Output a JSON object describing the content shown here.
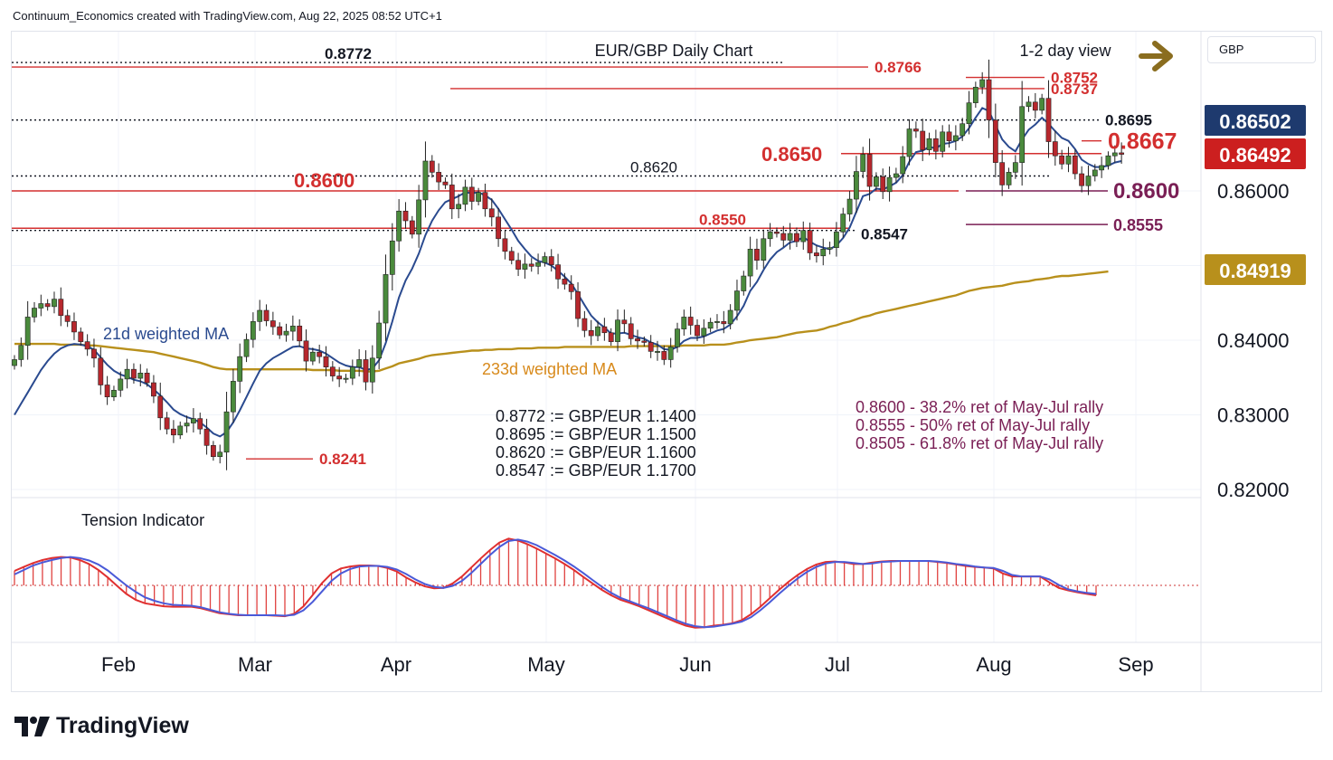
{
  "header": {
    "credit": "Continuum_Economics created with TradingView.com, Aug 22, 2025 08:52 UTC+1"
  },
  "currency_label": "GBP",
  "logo": {
    "text": "TradingView",
    "icon": "tradingview-logo-icon"
  },
  "colors": {
    "candle_up": "#4a8a3c",
    "candle_down": "#b7272d",
    "resistance": "#d32f2f",
    "ma21": "#2a4a8f",
    "ma233": "#b8901c",
    "retrace": "#7a1f55",
    "arrow": "#8a6d1f"
  },
  "chart_data": {
    "type": "candlestick",
    "title": "EUR/GBP Daily Chart",
    "subtitle": "1-2 day view",
    "x_ticks": [
      "Feb",
      "Mar",
      "Apr",
      "May",
      "Jun",
      "Jul",
      "Aug",
      "Sep"
    ],
    "y_ticks": [
      "0.82000",
      "0.83000",
      "0.84000",
      "0.86000"
    ],
    "ylim": [
      0.8185,
      0.8815
    ],
    "price_tags": [
      {
        "text": "0.86502",
        "value": 0.86502,
        "style": "navy"
      },
      {
        "text": "0.86492",
        "value": 0.86492,
        "style": "red"
      },
      {
        "text": "0.84919",
        "value": 0.84919,
        "style": "gold"
      }
    ],
    "levels": [
      {
        "text": "0.8772",
        "value": 0.8772,
        "style": "dotted"
      },
      {
        "text": "0.8766",
        "value": 0.8766,
        "style": "resistance"
      },
      {
        "text": "0.8752",
        "value": 0.8752,
        "style": "resistance"
      },
      {
        "text": "0.8737",
        "value": 0.8737,
        "style": "resistance"
      },
      {
        "text": "0.8695",
        "value": 0.8695,
        "style": "dotted"
      },
      {
        "text": "0.8667",
        "value": 0.8667,
        "style": "resistance"
      },
      {
        "text": "0.8650",
        "value": 0.865,
        "style": "resistance"
      },
      {
        "text": "0.8620",
        "value": 0.862,
        "style": "dotted"
      },
      {
        "text": "0.8600",
        "value": 0.86,
        "style": "resistance"
      },
      {
        "text": "0.8600",
        "value": 0.86,
        "style": "retrace"
      },
      {
        "text": "0.8555",
        "value": 0.8555,
        "style": "retrace"
      },
      {
        "text": "0.8550",
        "value": 0.855,
        "style": "resistance"
      },
      {
        "text": "0.8547",
        "value": 0.8547,
        "style": "dotted"
      },
      {
        "text": "0.8241",
        "value": 0.8241,
        "style": "resistance"
      }
    ],
    "ma_labels": {
      "ma21": "21d weighted MA",
      "ma233": "233d weighted MA"
    },
    "conversions": [
      "0.8772 := GBP/EUR 1.1400",
      "0.8695 := GBP/EUR 1.1500",
      "0.8620 := GBP/EUR 1.1600",
      "0.8547 := GBP/EUR 1.1700"
    ],
    "retracements": [
      "0.8600 - 38.2% ret of May-Jul rally",
      "0.8555 - 50% ret of May-Jul rally",
      "0.8505 - 61.8% ret of May-Jul rally"
    ],
    "close": [
      0.8374,
      0.8393,
      0.8431,
      0.8443,
      0.8449,
      0.8445,
      0.8455,
      0.8433,
      0.8425,
      0.8411,
      0.8398,
      0.8388,
      0.8376,
      0.834,
      0.8324,
      0.8333,
      0.8348,
      0.8361,
      0.8349,
      0.8356,
      0.8343,
      0.8325,
      0.8296,
      0.8281,
      0.8273,
      0.8285,
      0.8289,
      0.8295,
      0.8281,
      0.8259,
      0.8244,
      0.825,
      0.8304,
      0.8345,
      0.8378,
      0.8401,
      0.8425,
      0.844,
      0.8426,
      0.8418,
      0.8407,
      0.8412,
      0.8419,
      0.8399,
      0.8372,
      0.8384,
      0.8378,
      0.8364,
      0.8352,
      0.8348,
      0.8349,
      0.8364,
      0.8374,
      0.8344,
      0.8376,
      0.8423,
      0.8488,
      0.8533,
      0.8573,
      0.856,
      0.8542,
      0.8588,
      0.864,
      0.8625,
      0.8612,
      0.8608,
      0.8576,
      0.8582,
      0.8605,
      0.8586,
      0.8598,
      0.8576,
      0.8565,
      0.8536,
      0.8519,
      0.8507,
      0.8495,
      0.8502,
      0.8499,
      0.8504,
      0.8512,
      0.8501,
      0.8482,
      0.8475,
      0.8465,
      0.8429,
      0.8413,
      0.8406,
      0.8418,
      0.841,
      0.8398,
      0.8427,
      0.8422,
      0.8402,
      0.8399,
      0.8397,
      0.8385,
      0.8385,
      0.8374,
      0.8391,
      0.8415,
      0.8431,
      0.842,
      0.8406,
      0.8416,
      0.8424,
      0.8425,
      0.8422,
      0.844,
      0.8466,
      0.8486,
      0.8522,
      0.8507,
      0.8536,
      0.8545,
      0.8543,
      0.8534,
      0.8543,
      0.8532,
      0.8547,
      0.8517,
      0.8513,
      0.8522,
      0.8524,
      0.8545,
      0.8569,
      0.8589,
      0.8626,
      0.8649,
      0.8606,
      0.8619,
      0.8599,
      0.8618,
      0.8623,
      0.8646,
      0.8683,
      0.868,
      0.8655,
      0.867,
      0.8653,
      0.8679,
      0.8667,
      0.8674,
      0.869,
      0.8718,
      0.8739,
      0.8749,
      0.8695,
      0.8638,
      0.8608,
      0.8625,
      0.8638,
      0.8713,
      0.8719,
      0.8708,
      0.8724,
      0.8666,
      0.8647,
      0.8636,
      0.8647,
      0.8623,
      0.8607,
      0.862,
      0.8628,
      0.8634,
      0.8647,
      0.8651,
      0.8649
    ],
    "ma21": [
      0.83,
      0.8315,
      0.833,
      0.8345,
      0.836,
      0.8372,
      0.8382,
      0.8389,
      0.8393,
      0.8395,
      0.8394,
      0.8392,
      0.8387,
      0.8377,
      0.8367,
      0.8359,
      0.8354,
      0.8351,
      0.8347,
      0.8345,
      0.8341,
      0.8334,
      0.8326,
      0.8317,
      0.8307,
      0.8301,
      0.8297,
      0.8294,
      0.829,
      0.8283,
      0.8275,
      0.8271,
      0.8277,
      0.829,
      0.8306,
      0.8324,
      0.8342,
      0.8359,
      0.8369,
      0.8376,
      0.8381,
      0.8386,
      0.8391,
      0.8392,
      0.8389,
      0.8388,
      0.8386,
      0.8382,
      0.8376,
      0.837,
      0.8366,
      0.8364,
      0.8364,
      0.836,
      0.8362,
      0.8373,
      0.8396,
      0.8425,
      0.8457,
      0.848,
      0.8496,
      0.8516,
      0.8541,
      0.856,
      0.8574,
      0.8585,
      0.8589,
      0.8593,
      0.8598,
      0.8597,
      0.8598,
      0.8594,
      0.8588,
      0.8576,
      0.8562,
      0.8548,
      0.8533,
      0.8522,
      0.8512,
      0.8506,
      0.8504,
      0.85,
      0.8493,
      0.8485,
      0.8476,
      0.8462,
      0.8447,
      0.8433,
      0.8424,
      0.8417,
      0.8409,
      0.8409,
      0.841,
      0.8407,
      0.8404,
      0.8402,
      0.8397,
      0.8394,
      0.8388,
      0.8387,
      0.8391,
      0.8399,
      0.8403,
      0.8403,
      0.8405,
      0.8409,
      0.8413,
      0.8415,
      0.8421,
      0.8432,
      0.8446,
      0.8466,
      0.8478,
      0.8494,
      0.8508,
      0.8518,
      0.8524,
      0.8531,
      0.8533,
      0.8538,
      0.8532,
      0.8527,
      0.8524,
      0.8522,
      0.8527,
      0.8537,
      0.8551,
      0.8572,
      0.8593,
      0.8596,
      0.8603,
      0.8602,
      0.8606,
      0.8611,
      0.8621,
      0.8639,
      0.8652,
      0.8654,
      0.8659,
      0.8657,
      0.8663,
      0.8664,
      0.8667,
      0.8673,
      0.8684,
      0.8698,
      0.8711,
      0.8707,
      0.8688,
      0.8669,
      0.8659,
      0.8653,
      0.8669,
      0.8682,
      0.8689,
      0.8698,
      0.869,
      0.868,
      0.8671,
      0.8667,
      0.8656,
      0.8642,
      0.8636,
      0.8632,
      0.8632,
      0.8634,
      0.8638,
      0.864
    ],
    "ma233": [
      0.8395,
      0.8395,
      0.8395,
      0.8395,
      0.8395,
      0.8395,
      0.8395,
      0.8394,
      0.8394,
      0.8394,
      0.8394,
      0.8393,
      0.8393,
      0.8392,
      0.8391,
      0.839,
      0.8389,
      0.8388,
      0.8387,
      0.8386,
      0.8385,
      0.8384,
      0.8382,
      0.838,
      0.8378,
      0.8376,
      0.8374,
      0.8372,
      0.837,
      0.8367,
      0.8364,
      0.8362,
      0.8361,
      0.8361,
      0.8361,
      0.8361,
      0.8361,
      0.8361,
      0.8361,
      0.8361,
      0.8361,
      0.8361,
      0.8361,
      0.8361,
      0.8361,
      0.836,
      0.836,
      0.836,
      0.836,
      0.8359,
      0.8359,
      0.8359,
      0.8359,
      0.8358,
      0.8358,
      0.8359,
      0.8362,
      0.8365,
      0.8369,
      0.8371,
      0.8373,
      0.8375,
      0.8378,
      0.838,
      0.8381,
      0.8382,
      0.8383,
      0.8384,
      0.8385,
      0.8386,
      0.8386,
      0.8387,
      0.8387,
      0.8388,
      0.8388,
      0.8388,
      0.8389,
      0.8389,
      0.8389,
      0.839,
      0.839,
      0.839,
      0.839,
      0.8391,
      0.8391,
      0.8391,
      0.8391,
      0.8391,
      0.8391,
      0.8391,
      0.8391,
      0.8391,
      0.8391,
      0.8392,
      0.8392,
      0.8392,
      0.8392,
      0.8392,
      0.8392,
      0.8392,
      0.8392,
      0.8393,
      0.8393,
      0.8393,
      0.8393,
      0.8394,
      0.8394,
      0.8394,
      0.8395,
      0.8397,
      0.8398,
      0.84,
      0.8401,
      0.8402,
      0.8403,
      0.8404,
      0.8406,
      0.8408,
      0.841,
      0.8411,
      0.8412,
      0.8413,
      0.8415,
      0.8418,
      0.842,
      0.8423,
      0.8425,
      0.8428,
      0.8431,
      0.8433,
      0.8436,
      0.8438,
      0.844,
      0.8442,
      0.8444,
      0.8446,
      0.8448,
      0.845,
      0.8452,
      0.8454,
      0.8456,
      0.8458,
      0.846,
      0.8463,
      0.8466,
      0.8468,
      0.847,
      0.8471,
      0.8472,
      0.8473,
      0.8475,
      0.8477,
      0.8478,
      0.8479,
      0.8481,
      0.8482,
      0.8483,
      0.8485,
      0.8486,
      0.8486,
      0.8487,
      0.8488,
      0.8489,
      0.849,
      0.8491,
      0.8492
    ],
    "tension_indicator": {
      "title": "Tension Indicator",
      "ylim": [
        -1.0,
        1.0
      ],
      "fast": [
        0.29,
        0.37,
        0.45,
        0.51,
        0.55,
        0.57,
        0.56,
        0.51,
        0.43,
        0.31,
        0.16,
        -0.01,
        -0.17,
        -0.29,
        -0.36,
        -0.39,
        -0.42,
        -0.43,
        -0.43,
        -0.43,
        -0.46,
        -0.51,
        -0.56,
        -0.58,
        -0.6,
        -0.6,
        -0.6,
        -0.6,
        -0.61,
        -0.62,
        -0.57,
        -0.42,
        -0.19,
        0.05,
        0.24,
        0.34,
        0.38,
        0.4,
        0.4,
        0.39,
        0.35,
        0.28,
        0.16,
        0.06,
        -0.02,
        -0.06,
        -0.05,
        0.04,
        0.18,
        0.36,
        0.54,
        0.71,
        0.86,
        0.94,
        0.9,
        0.83,
        0.74,
        0.64,
        0.54,
        0.43,
        0.31,
        0.17,
        0.04,
        -0.09,
        -0.2,
        -0.29,
        -0.35,
        -0.42,
        -0.5,
        -0.58,
        -0.66,
        -0.74,
        -0.81,
        -0.85,
        -0.84,
        -0.81,
        -0.79,
        -0.76,
        -0.7,
        -0.58,
        -0.43,
        -0.26,
        -0.09,
        0.07,
        0.21,
        0.33,
        0.42,
        0.47,
        0.48,
        0.46,
        0.43,
        0.43,
        0.46,
        0.48,
        0.49,
        0.49,
        0.49,
        0.49,
        0.49,
        0.47,
        0.45,
        0.42,
        0.39,
        0.37,
        0.36,
        0.34,
        0.24,
        0.18,
        0.18,
        0.18,
        0.18,
        0.06,
        -0.05,
        -0.1,
        -0.14,
        -0.17,
        -0.2
      ],
      "slow": [
        0.22,
        0.31,
        0.4,
        0.46,
        0.51,
        0.55,
        0.57,
        0.55,
        0.5,
        0.42,
        0.3,
        0.15,
        0.0,
        -0.13,
        -0.24,
        -0.31,
        -0.36,
        -0.39,
        -0.4,
        -0.41,
        -0.44,
        -0.49,
        -0.54,
        -0.57,
        -0.59,
        -0.6,
        -0.6,
        -0.6,
        -0.6,
        -0.61,
        -0.59,
        -0.5,
        -0.33,
        -0.12,
        0.09,
        0.24,
        0.33,
        0.38,
        0.39,
        0.39,
        0.37,
        0.32,
        0.23,
        0.12,
        0.03,
        -0.03,
        -0.05,
        -0.01,
        0.09,
        0.25,
        0.43,
        0.61,
        0.77,
        0.89,
        0.92,
        0.88,
        0.81,
        0.71,
        0.61,
        0.5,
        0.38,
        0.25,
        0.11,
        -0.03,
        -0.15,
        -0.25,
        -0.32,
        -0.39,
        -0.46,
        -0.54,
        -0.62,
        -0.7,
        -0.77,
        -0.82,
        -0.84,
        -0.83,
        -0.8,
        -0.77,
        -0.73,
        -0.64,
        -0.5,
        -0.34,
        -0.17,
        -0.01,
        0.14,
        0.27,
        0.37,
        0.44,
        0.47,
        0.47,
        0.45,
        0.43,
        0.44,
        0.47,
        0.48,
        0.49,
        0.49,
        0.49,
        0.49,
        0.48,
        0.46,
        0.43,
        0.41,
        0.38,
        0.36,
        0.35,
        0.29,
        0.21,
        0.18,
        0.18,
        0.18,
        0.12,
        0.01,
        -0.08,
        -0.12,
        -0.15,
        -0.17
      ]
    }
  }
}
